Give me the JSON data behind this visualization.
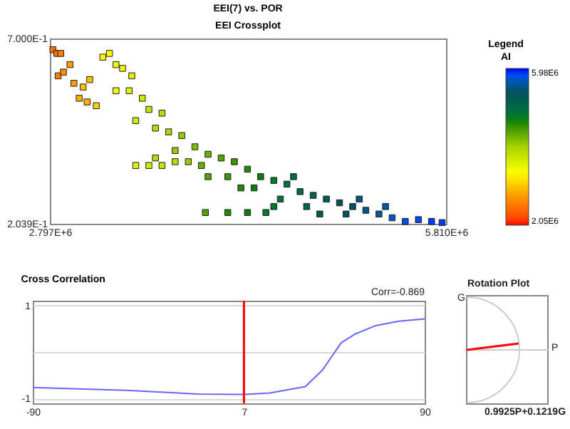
{
  "chart_data": [
    {
      "type": "scatter",
      "title": "EEI(7) vs. POR",
      "subtitle": "EEI Crossplot",
      "legend_title": "Legend",
      "clabel": "AI",
      "marker": "square",
      "grid": false,
      "xlim": [
        2797000,
        5810000
      ],
      "ylim": [
        0.2039,
        0.7
      ],
      "xticks": [
        {
          "value": 2797000,
          "label": "2.797E+6"
        },
        {
          "value": 5810000,
          "label": "5.810E+6"
        }
      ],
      "yticks": [
        {
          "value": 0.2039,
          "label": "2.039E-1"
        },
        {
          "value": 0.7,
          "label": "7.000E-1"
        }
      ],
      "clim": [
        2050000,
        5980000
      ],
      "cticks": [
        {
          "value": 2050000,
          "label": "2.05E6"
        },
        {
          "value": 5980000,
          "label": "5.98E6"
        }
      ],
      "x": [
        2820000,
        2850000,
        2880000,
        2860000,
        2900000,
        2950000,
        2980000,
        3050000,
        3100000,
        3080000,
        3020000,
        3150000,
        3200000,
        3250000,
        3300000,
        3350000,
        3420000,
        3300000,
        3400000,
        3500000,
        3550000,
        3650000,
        3450000,
        3600000,
        3700000,
        3800000,
        3750000,
        3900000,
        4000000,
        3950000,
        4100000,
        4200000,
        4150000,
        4300000,
        4400000,
        4350000,
        4500000,
        4600000,
        4550000,
        4700000,
        4800000,
        4750000,
        4900000,
        5000000,
        5100000,
        5050000,
        5200000,
        5300000,
        5400000,
        5500000,
        5600000,
        5700000,
        5780000,
        3450000,
        3550000,
        3650000,
        3750000,
        3980000,
        4150000,
        4300000,
        4440000,
        4000000,
        4250000,
        4500000,
        4650000,
        4850000,
        5150000,
        5350000,
        3600000,
        3850000
      ],
      "values": [
        0.67,
        0.66,
        0.66,
        0.6,
        0.61,
        0.63,
        0.58,
        0.57,
        0.59,
        0.53,
        0.54,
        0.52,
        0.65,
        0.66,
        0.63,
        0.62,
        0.6,
        0.56,
        0.56,
        0.54,
        0.51,
        0.5,
        0.48,
        0.46,
        0.45,
        0.44,
        0.4,
        0.41,
        0.39,
        0.36,
        0.38,
        0.37,
        0.33,
        0.35,
        0.33,
        0.3,
        0.32,
        0.31,
        0.27,
        0.29,
        0.28,
        0.25,
        0.27,
        0.26,
        0.25,
        0.23,
        0.24,
        0.23,
        0.22,
        0.21,
        0.215,
        0.21,
        0.207,
        0.36,
        0.36,
        0.36,
        0.37,
        0.234,
        0.234,
        0.234,
        0.234,
        0.33,
        0.3,
        0.25,
        0.33,
        0.23,
        0.27,
        0.25,
        0.38,
        0.37
      ],
      "cvalues": [
        2500000,
        2500000,
        2600000,
        2600000,
        2700000,
        2800000,
        2800000,
        3000000,
        3000000,
        2900000,
        2900000,
        3100000,
        3300000,
        3400000,
        3500000,
        3500000,
        3600000,
        3500000,
        3600000,
        3700000,
        3800000,
        3900000,
        3700000,
        3900000,
        4000000,
        4100000,
        4100000,
        4200000,
        4300000,
        4300000,
        4400000,
        4500000,
        4500000,
        4600000,
        4700000,
        4700000,
        4800000,
        4900000,
        4900000,
        5000000,
        5100000,
        5100000,
        5200000,
        5300000,
        5400000,
        5400000,
        5500000,
        5600000,
        5700000,
        5800000,
        5850000,
        5900000,
        5900000,
        3600000,
        3700000,
        3800000,
        3900000,
        4400000,
        4600000,
        4700000,
        4800000,
        4400000,
        4600000,
        4800000,
        5000000,
        5200000,
        5500000,
        5600000,
        3900000,
        4100000
      ]
    },
    {
      "type": "line",
      "title": "Cross Correlation",
      "annotations": [
        "Corr=-0.869"
      ],
      "grid": "y",
      "xlim": [
        -90,
        90
      ],
      "xticks": [
        -90,
        7,
        90
      ],
      "ylim": [
        -1.1,
        1.1
      ],
      "yticks": [
        -1,
        {
          "value": 0,
          "label": null
        },
        1
      ],
      "ref_lines": [
        {
          "axis": "x",
          "value": 7,
          "color": "#ff0000"
        }
      ],
      "series": [
        {
          "color": "#6666ff",
          "x": [
            -90,
            -47,
            -14,
            7,
            18.8,
            35.2,
            43,
            47.3,
            51.7,
            58.3,
            67.1,
            78.1,
            90
          ],
          "values": [
            -0.76,
            -0.82,
            -0.9,
            -0.91,
            -0.88,
            -0.74,
            -0.39,
            -0.1,
            0.2,
            0.39,
            0.56,
            0.66,
            0.71
          ]
        }
      ]
    },
    {
      "type": "other",
      "title": "Rotation Plot",
      "xlabel": "P",
      "ylabel": "G",
      "annotations": [
        "0.9925P+0.1219G"
      ]
    }
  ]
}
